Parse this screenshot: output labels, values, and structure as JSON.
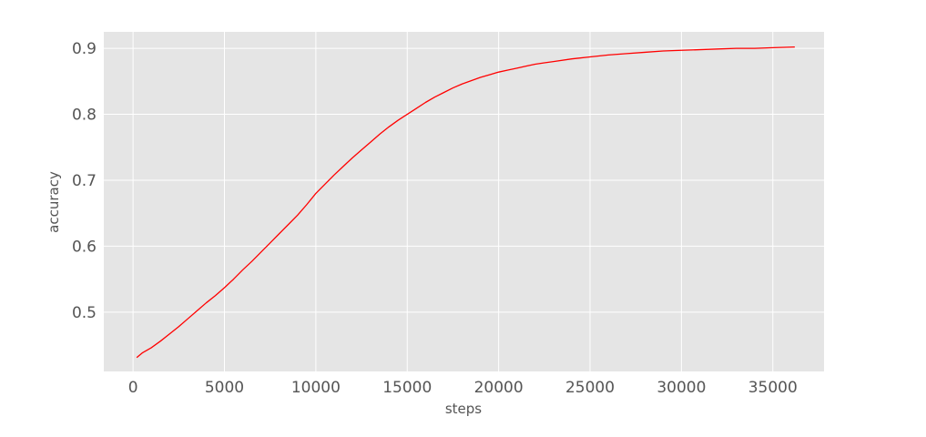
{
  "chart_data": {
    "type": "line",
    "title": "",
    "xlabel": "steps",
    "ylabel": "accuracy",
    "xlim": [
      -1600,
      37800
    ],
    "ylim": [
      0.41,
      0.925
    ],
    "xticks": [
      0,
      5000,
      10000,
      15000,
      20000,
      25000,
      30000,
      35000
    ],
    "yticks": [
      0.5,
      0.6,
      0.7,
      0.8,
      0.9
    ],
    "xtick_labels": [
      "0",
      "5000",
      "10000",
      "15000",
      "20000",
      "25000",
      "30000",
      "35000"
    ],
    "ytick_labels": [
      "0.5",
      "0.6",
      "0.7",
      "0.8",
      "0.9"
    ],
    "grid": true,
    "background": "#e5e5e5",
    "grid_color": "#ffffff",
    "series": [
      {
        "color": "#ff0000",
        "x": [
          200,
          500,
          1000,
          1500,
          2000,
          2500,
          3000,
          3500,
          4000,
          4500,
          5000,
          5500,
          6000,
          6500,
          7000,
          7500,
          8000,
          8500,
          9000,
          9500,
          10000,
          10500,
          11000,
          11500,
          12000,
          12500,
          13000,
          13500,
          14000,
          14500,
          15000,
          15500,
          16000,
          16500,
          17000,
          17500,
          18000,
          18500,
          19000,
          19500,
          20000,
          20500,
          21000,
          21500,
          22000,
          22500,
          23000,
          24000,
          25000,
          26000,
          27000,
          28000,
          29000,
          30000,
          31000,
          32000,
          33000,
          34000,
          35000,
          36200
        ],
        "y": [
          0.431,
          0.438,
          0.446,
          0.456,
          0.467,
          0.478,
          0.49,
          0.502,
          0.514,
          0.525,
          0.537,
          0.55,
          0.564,
          0.577,
          0.591,
          0.605,
          0.619,
          0.633,
          0.647,
          0.663,
          0.68,
          0.694,
          0.708,
          0.721,
          0.734,
          0.746,
          0.758,
          0.77,
          0.781,
          0.791,
          0.8,
          0.809,
          0.818,
          0.826,
          0.833,
          0.84,
          0.846,
          0.851,
          0.856,
          0.86,
          0.864,
          0.867,
          0.87,
          0.873,
          0.876,
          0.878,
          0.88,
          0.884,
          0.887,
          0.89,
          0.892,
          0.894,
          0.896,
          0.897,
          0.898,
          0.899,
          0.9,
          0.9,
          0.901,
          0.902
        ]
      }
    ]
  }
}
